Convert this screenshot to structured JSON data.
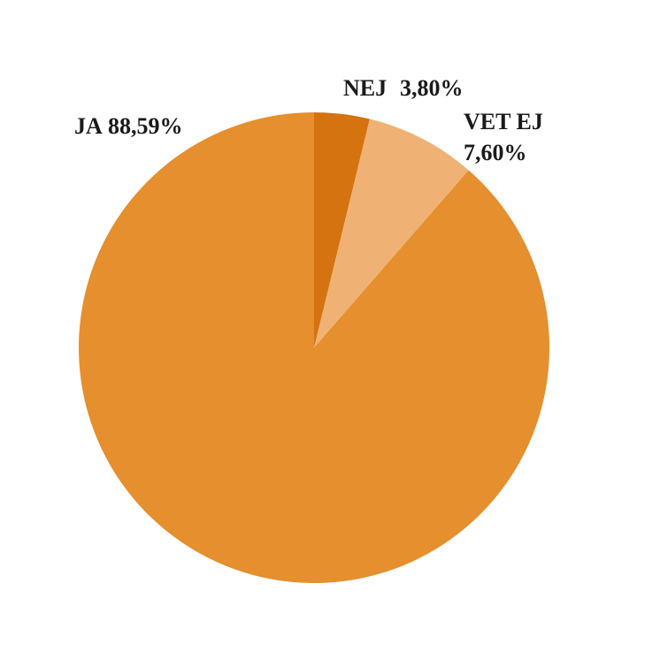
{
  "chart_data": {
    "type": "pie",
    "categories": [
      "NEJ",
      "VET EJ",
      "JA"
    ],
    "values": [
      3.8,
      7.6,
      88.59
    ],
    "value_labels": [
      "3,80%",
      "7,60%",
      "88,59%"
    ],
    "colors": [
      "#d4730f",
      "#f0b274",
      "#e58f2e"
    ]
  }
}
